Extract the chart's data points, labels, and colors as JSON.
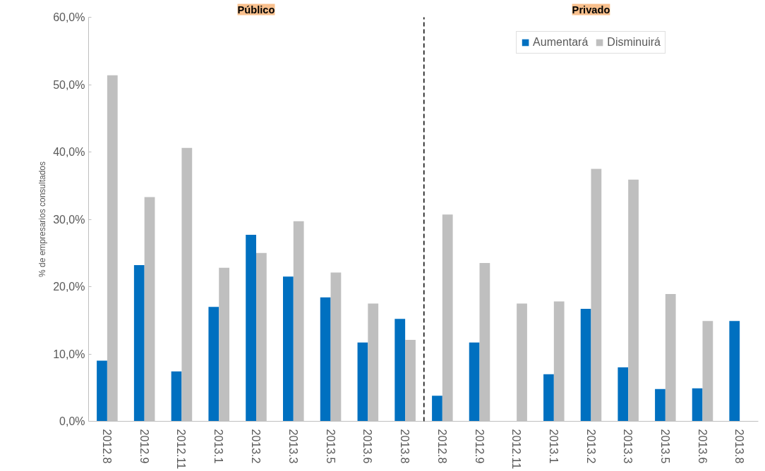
{
  "chart_data": [
    {
      "type": "bar",
      "title": "Público",
      "ylabel": "% de empresarios consultados",
      "categories": [
        "2012.8",
        "2012.9",
        "2012.11",
        "2013.1",
        "2013.2",
        "2013.3",
        "2013.5",
        "2013.6",
        "2013.8"
      ],
      "series": [
        {
          "color": "#0070c0",
          "values": [
            9.0,
            23.2,
            7.4,
            17.0,
            27.7,
            21.5,
            18.4,
            11.7,
            15.2
          ]
        },
        {
          "color": "#bfbfbf",
          "values": [
            51.4,
            33.3,
            40.6,
            22.8,
            25.0,
            29.7,
            22.1,
            17.5,
            12.1
          ]
        }
      ],
      "ylim": [
        0,
        60
      ],
      "yticks": [
        {
          "value": 0,
          "label": "0,0%"
        },
        {
          "value": 10,
          "label": "10,0%"
        },
        {
          "value": 20,
          "label": "20,0%"
        },
        {
          "value": 30,
          "label": "30,0%"
        },
        {
          "value": 40,
          "label": "40,0%"
        },
        {
          "value": 50,
          "label": "50,0%"
        },
        {
          "value": 60,
          "label": "60,0%"
        }
      ],
      "grid": false,
      "legend": false
    },
    {
      "type": "bar",
      "title": "Privado",
      "categories": [
        "2012.8",
        "2012.9",
        "2012.11",
        "2013.1",
        "2013.2",
        "2013.3",
        "2013.5",
        "2013.6",
        "2013.8"
      ],
      "series": [
        {
          "name": "Aumentará",
          "color": "#0070c0",
          "values": [
            3.8,
            11.7,
            null,
            7.0,
            16.7,
            8.0,
            4.8,
            4.9,
            14.9
          ]
        },
        {
          "name": "Disminuirá",
          "color": "#bfbfbf",
          "values": [
            30.7,
            23.5,
            17.5,
            17.8,
            37.5,
            35.9,
            18.9,
            14.9,
            null
          ]
        }
      ],
      "ylim": [
        0,
        60
      ],
      "tick_labels": "x",
      "grid": false,
      "legend": "top"
    }
  ]
}
